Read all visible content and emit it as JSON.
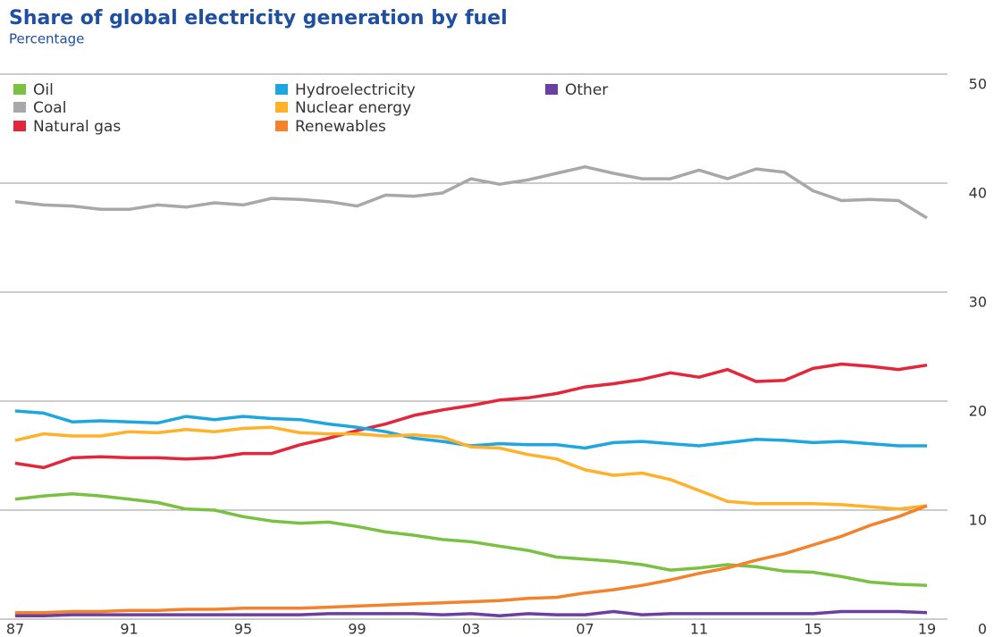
{
  "chart_data": {
    "type": "line",
    "title": "Share of global electricity generation by fuel",
    "subtitle": "Percentage",
    "categories": [
      "87",
      null,
      null,
      null,
      "91",
      null,
      null,
      null,
      "95",
      null,
      null,
      null,
      "99",
      null,
      null,
      null,
      "03",
      null,
      null,
      null,
      "07",
      null,
      null,
      null,
      "11",
      null,
      null,
      null,
      "15",
      null,
      null,
      null,
      "19"
    ],
    "ylim": [
      0,
      50
    ],
    "yticks": [
      0,
      10,
      20,
      30,
      40,
      50
    ],
    "grid": true,
    "series": [
      {
        "name": "Oil",
        "color": "#7ac143",
        "values": [
          11.0,
          11.3,
          11.5,
          11.3,
          11.0,
          10.7,
          10.1,
          10.0,
          9.4,
          9.0,
          8.8,
          8.9,
          8.5,
          8.0,
          7.7,
          7.3,
          7.1,
          6.7,
          6.3,
          5.7,
          5.5,
          5.3,
          5.0,
          4.5,
          4.7,
          5.0,
          4.8,
          4.4,
          4.3,
          3.9,
          3.4,
          3.2,
          3.1
        ]
      },
      {
        "name": "Coal",
        "color": "#a8a8a8",
        "values": [
          38.3,
          38.0,
          37.9,
          37.6,
          37.6,
          38.0,
          37.8,
          38.2,
          38.0,
          38.6,
          38.5,
          38.3,
          37.9,
          38.9,
          38.8,
          39.1,
          40.4,
          39.9,
          40.3,
          40.9,
          41.5,
          40.9,
          40.4,
          40.4,
          41.2,
          40.4,
          41.3,
          41.0,
          39.3,
          38.4,
          38.5,
          38.4,
          36.8
        ]
      },
      {
        "name": "Natural gas",
        "color": "#e3263b",
        "values": [
          14.3,
          13.9,
          14.8,
          14.9,
          14.8,
          14.8,
          14.7,
          14.8,
          15.2,
          15.2,
          16.0,
          16.6,
          17.3,
          17.9,
          18.7,
          19.2,
          19.6,
          20.1,
          20.3,
          20.7,
          21.3,
          21.6,
          22.0,
          22.6,
          22.2,
          22.9,
          21.8,
          21.9,
          23.0,
          23.4,
          23.2,
          22.9,
          23.3
        ]
      },
      {
        "name": "Hydroelectricity",
        "color": "#1ea6e0",
        "values": [
          19.1,
          18.9,
          18.1,
          18.2,
          18.1,
          18.0,
          18.6,
          18.3,
          18.6,
          18.4,
          18.3,
          17.9,
          17.6,
          17.2,
          16.6,
          16.3,
          15.9,
          16.1,
          16.0,
          16.0,
          15.7,
          16.2,
          16.3,
          16.1,
          15.9,
          16.2,
          16.5,
          16.4,
          16.2,
          16.3,
          16.1,
          15.9,
          15.9
        ]
      },
      {
        "name": "Nuclear energy",
        "color": "#ffb12a",
        "values": [
          16.4,
          17.0,
          16.8,
          16.8,
          17.2,
          17.1,
          17.4,
          17.2,
          17.5,
          17.6,
          17.1,
          17.0,
          17.0,
          16.8,
          16.9,
          16.7,
          15.8,
          15.7,
          15.1,
          14.7,
          13.7,
          13.2,
          13.4,
          12.8,
          11.8,
          10.8,
          10.6,
          10.6,
          10.6,
          10.5,
          10.3,
          10.1,
          10.4
        ]
      },
      {
        "name": "Renewables",
        "color": "#f5822a",
        "values": [
          0.6,
          0.6,
          0.7,
          0.7,
          0.8,
          0.8,
          0.9,
          0.9,
          1.0,
          1.0,
          1.0,
          1.1,
          1.2,
          1.3,
          1.4,
          1.5,
          1.6,
          1.7,
          1.9,
          2.0,
          2.4,
          2.7,
          3.1,
          3.6,
          4.2,
          4.7,
          5.4,
          6.0,
          6.8,
          7.6,
          8.6,
          9.4,
          10.4
        ]
      },
      {
        "name": "Other",
        "color": "#6b3fa0",
        "values": [
          0.3,
          0.3,
          0.4,
          0.4,
          0.4,
          0.4,
          0.4,
          0.4,
          0.4,
          0.4,
          0.4,
          0.5,
          0.5,
          0.5,
          0.5,
          0.4,
          0.5,
          0.3,
          0.5,
          0.4,
          0.4,
          0.7,
          0.4,
          0.5,
          0.5,
          0.5,
          0.5,
          0.5,
          0.5,
          0.7,
          0.7,
          0.7,
          0.6
        ]
      }
    ]
  }
}
